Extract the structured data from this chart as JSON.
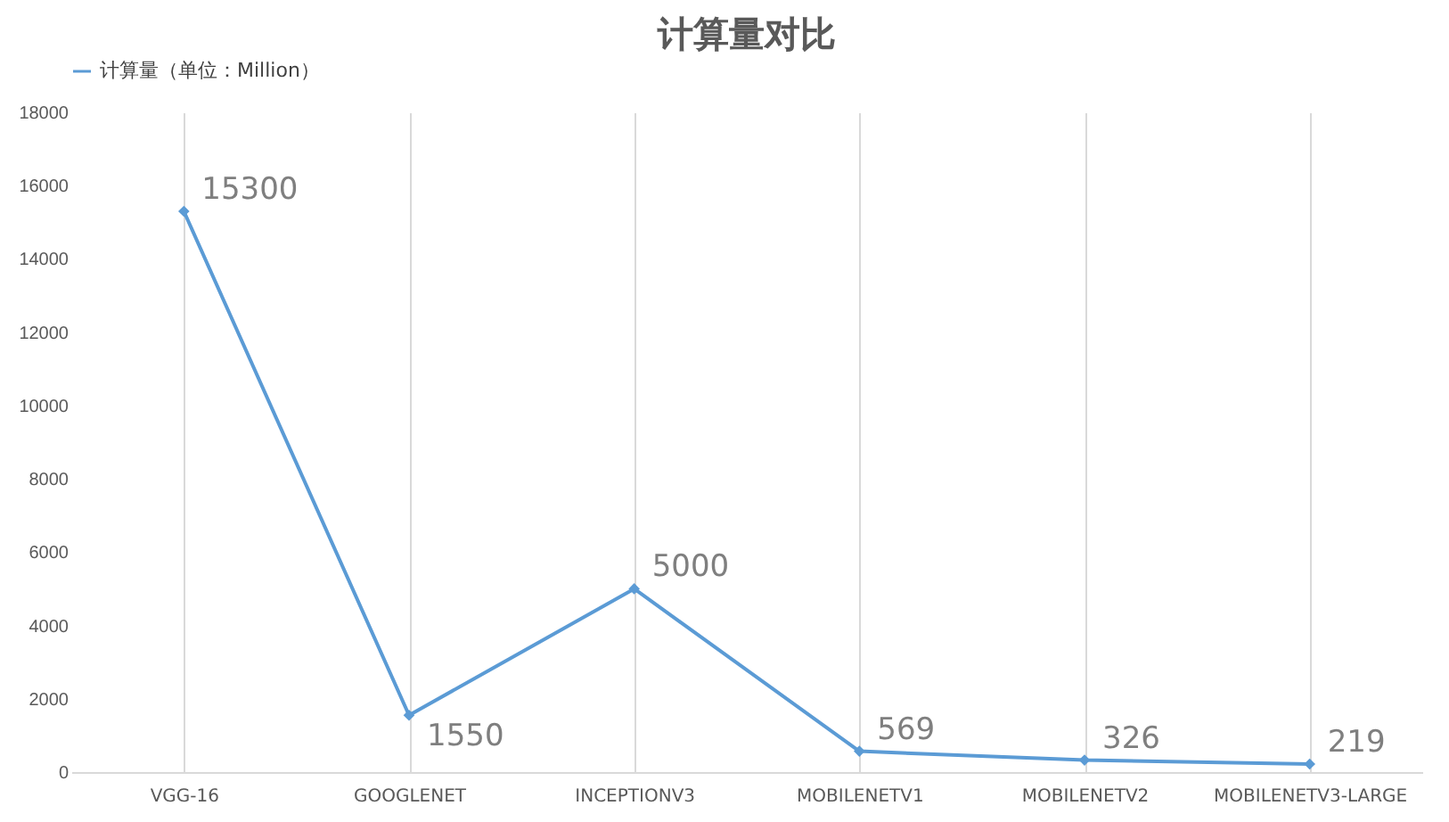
{
  "chart_data": {
    "type": "line",
    "title": "计算量对比",
    "categories": [
      "VGG-16",
      "GOOGLENET",
      "INCEPTIONV3",
      "MOBILENETV1",
      "MOBILENETV2",
      "MOBILENETV3-LARGE"
    ],
    "series": [
      {
        "name": "计算量（单位：Million）",
        "color": "#5b9bd5",
        "values": [
          15300,
          1550,
          5000,
          569,
          326,
          219
        ]
      }
    ],
    "ylim": [
      0,
      18000
    ],
    "yticks": [
      0,
      2000,
      4000,
      6000,
      8000,
      10000,
      12000,
      14000,
      16000,
      18000
    ],
    "grid": "x",
    "legend": "top",
    "marker": "diamond",
    "line_style": "solid",
    "data_labels": true
  }
}
